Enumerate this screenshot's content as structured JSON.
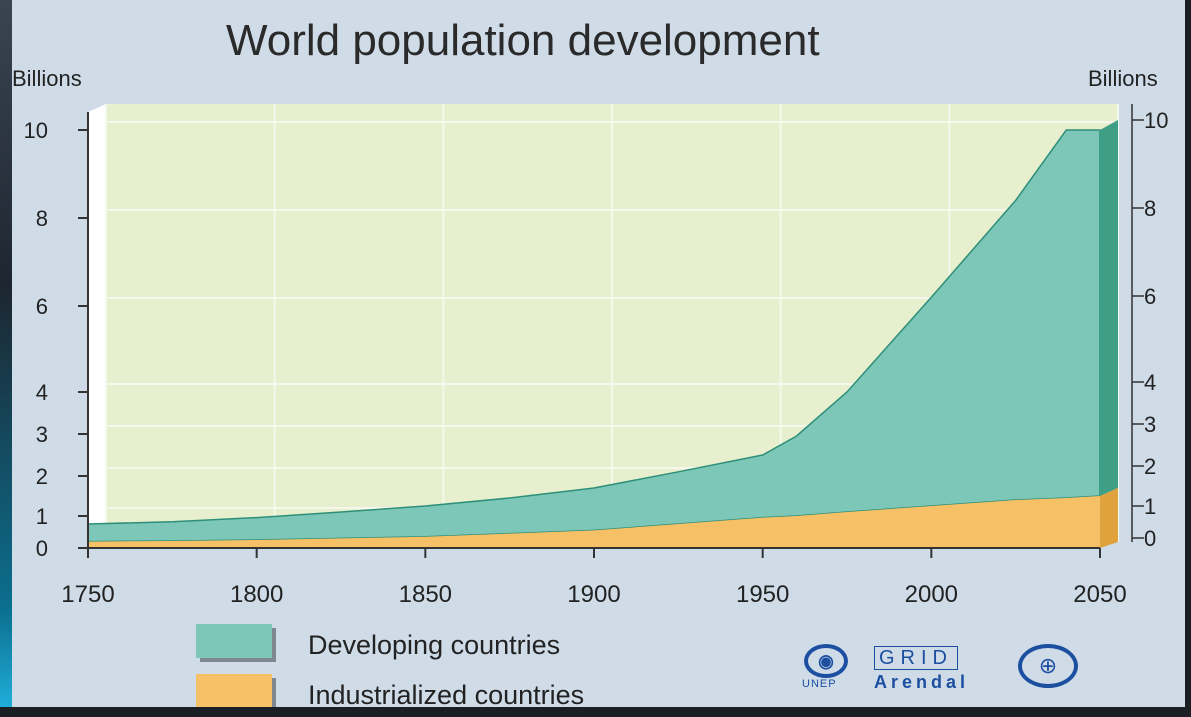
{
  "chart_data": {
    "type": "area",
    "title": "World population development",
    "ylabel_left": "Billions",
    "ylabel_right": "Billions",
    "x": [
      1750,
      1775,
      1800,
      1825,
      1850,
      1875,
      1900,
      1925,
      1950,
      1960,
      1975,
      2000,
      2025,
      2040,
      2050
    ],
    "xlim": [
      1750,
      2050
    ],
    "x_ticks": [
      "1750",
      "1800",
      "1850",
      "1900",
      "1950",
      "2000",
      "2050"
    ],
    "ylim": [
      0,
      10
    ],
    "y_ticks_left": [
      "0",
      "1",
      "2",
      "3",
      "4",
      "6",
      "8",
      "10"
    ],
    "y_ticks_right": [
      "0",
      "1",
      "2",
      "3",
      "4",
      "6",
      "8",
      "10"
    ],
    "series": [
      {
        "name": "Industrialized countries",
        "color": "#f6c066",
        "values": [
          0.2,
          0.22,
          0.25,
          0.3,
          0.35,
          0.45,
          0.55,
          0.75,
          0.95,
          1.0,
          1.1,
          1.25,
          1.4,
          1.45,
          1.5
        ]
      },
      {
        "name": "Developing countries",
        "color": "#7dc7b8",
        "values": [
          0.55,
          0.6,
          0.7,
          0.8,
          0.9,
          1.0,
          1.15,
          1.35,
          1.55,
          1.95,
          2.9,
          4.95,
          7.0,
          8.55,
          8.9
        ]
      }
    ],
    "legend_position": "bottom-left",
    "grid": true
  },
  "logos": {
    "unep_text": "UNEP",
    "grid_text": "GRID",
    "arendal_text": "Arendal"
  },
  "colors": {
    "plot_background": "#e7efcf",
    "developing": "#7dc7b8",
    "developing_edge": "#2e8f78",
    "industrialized": "#f6c066",
    "grid": "#f5f8ec"
  }
}
